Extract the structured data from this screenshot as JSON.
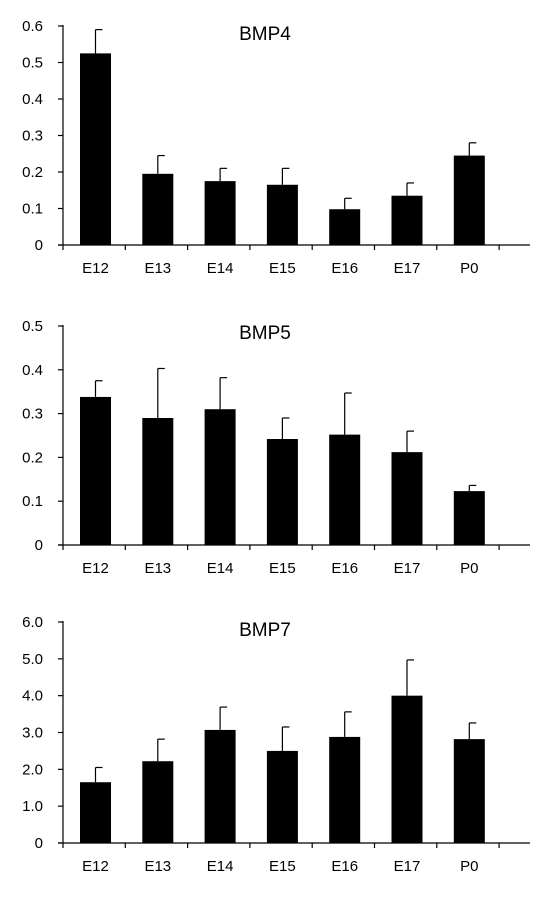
{
  "chart_data": [
    {
      "type": "bar",
      "title": "BMP4",
      "categories": [
        "E12",
        "E13",
        "E14",
        "E15",
        "E16",
        "E17",
        "P0"
      ],
      "values": [
        0.525,
        0.195,
        0.175,
        0.165,
        0.098,
        0.135,
        0.245
      ],
      "errors": [
        0.065,
        0.05,
        0.035,
        0.045,
        0.03,
        0.035,
        0.035
      ],
      "ylim": [
        0,
        0.6
      ],
      "yticks": [
        "0",
        "0.1",
        "0.2",
        "0.3",
        "0.4",
        "0.5",
        "0.6"
      ],
      "xlabel": "",
      "ylabel": "",
      "grid": false,
      "bar_color": "#000000"
    },
    {
      "type": "bar",
      "title": "BMP5",
      "categories": [
        "E12",
        "E13",
        "E14",
        "E15",
        "E16",
        "E17",
        "P0"
      ],
      "values": [
        0.338,
        0.29,
        0.31,
        0.242,
        0.252,
        0.212,
        0.123
      ],
      "errors": [
        0.037,
        0.113,
        0.072,
        0.048,
        0.095,
        0.048,
        0.013
      ],
      "ylim": [
        0,
        0.5
      ],
      "yticks": [
        "0",
        "0.1",
        "0.2",
        "0.3",
        "0.4",
        "0.5"
      ],
      "xlabel": "",
      "ylabel": "",
      "grid": false,
      "bar_color": "#000000"
    },
    {
      "type": "bar",
      "title": "BMP7",
      "categories": [
        "E12",
        "E13",
        "E14",
        "E15",
        "E16",
        "E17",
        "P0"
      ],
      "values": [
        1.65,
        2.22,
        3.07,
        2.5,
        2.88,
        4.0,
        2.82
      ],
      "errors": [
        0.4,
        0.6,
        0.62,
        0.65,
        0.68,
        0.97,
        0.44
      ],
      "ylim": [
        0,
        6.0
      ],
      "yticks": [
        "0",
        "1.0",
        "2.0",
        "3.0",
        "4.0",
        "5.0",
        "6.0"
      ],
      "xlabel": "",
      "ylabel": "",
      "grid": false,
      "bar_color": "#000000"
    }
  ]
}
